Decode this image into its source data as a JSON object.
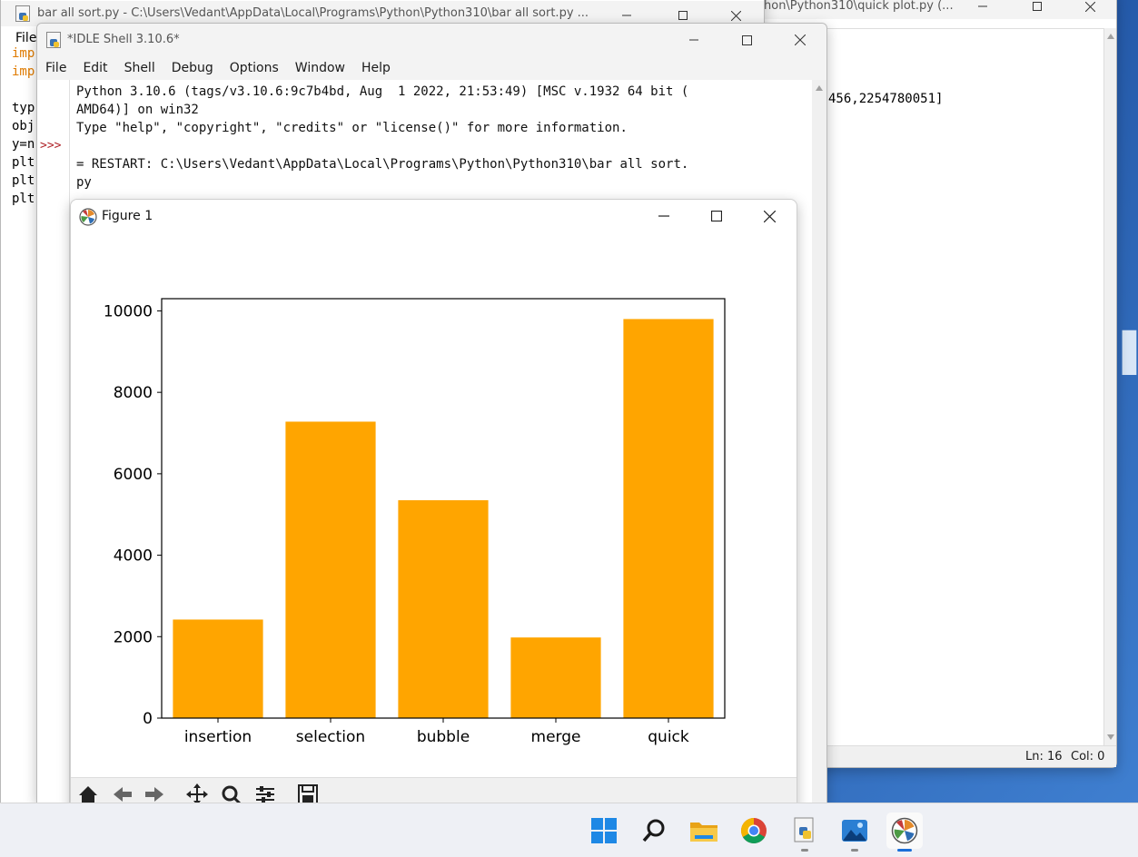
{
  "windows": {
    "bar_editor": {
      "title": "bar all sort.py - C:\\Users\\Vedant\\AppData\\Local\\Programs\\Python\\Python310\\bar all sort.py ...",
      "menu_first": "File",
      "code_lines": [
        {
          "text": "imp",
          "color": "#e07b00"
        },
        {
          "text": "imp",
          "color": "#e07b00"
        },
        {
          "text": "",
          "color": "#000000"
        },
        {
          "text": "typ",
          "color": "#000000"
        },
        {
          "text": "obj",
          "color": "#000000"
        },
        {
          "text": "y=n",
          "color": "#000000"
        },
        {
          "text": "plt",
          "color": "#000000"
        },
        {
          "text": "plt",
          "color": "#000000"
        },
        {
          "text": "plt",
          "color": "#000000"
        }
      ]
    },
    "quick_editor": {
      "title": "hon\\Python310\\quick plot.py (...",
      "visible_code": "456,2254780051]",
      "status": {
        "line": "Ln: 16",
        "col": "Col: 0"
      }
    },
    "idle_shell": {
      "title": "*IDLE Shell 3.10.6*",
      "menu": [
        "File",
        "Edit",
        "Shell",
        "Debug",
        "Options",
        "Window",
        "Help"
      ],
      "prompt": ">>>",
      "lines": [
        "Python 3.10.6 (tags/v3.10.6:9c7b4bd, Aug  1 2022, 21:53:49) [MSC v.1932 64 bit (",
        "AMD64)] on win32",
        "Type \"help\", \"copyright\", \"credits\" or \"license()\" for more information.",
        "",
        "= RESTART: C:\\Users\\Vedant\\AppData\\Local\\Programs\\Python\\Python310\\bar all sort.",
        "py"
      ]
    },
    "figure": {
      "title": "Figure 1",
      "toolbar_tools": [
        "home-icon",
        "back-icon",
        "forward-icon",
        "pan-icon",
        "zoom-icon",
        "configure-icon",
        "save-icon"
      ]
    }
  },
  "chart_data": {
    "type": "bar",
    "categories": [
      "insertion",
      "selection",
      "bubble",
      "merge",
      "quick"
    ],
    "values": [
      2420,
      7280,
      5350,
      1980,
      9800
    ],
    "ylim": [
      0,
      10300
    ],
    "yticks": [
      0,
      2000,
      4000,
      6000,
      8000,
      10000
    ],
    "bar_color": "#ffa500",
    "grid": false
  },
  "taskbar": {
    "apps": [
      {
        "name": "windows-start-icon"
      },
      {
        "name": "search-icon"
      },
      {
        "name": "file-explorer-icon"
      },
      {
        "name": "chrome-icon"
      },
      {
        "name": "python-idle-icon"
      },
      {
        "name": "photos-icon"
      },
      {
        "name": "matplotlib-figure-icon"
      }
    ]
  }
}
